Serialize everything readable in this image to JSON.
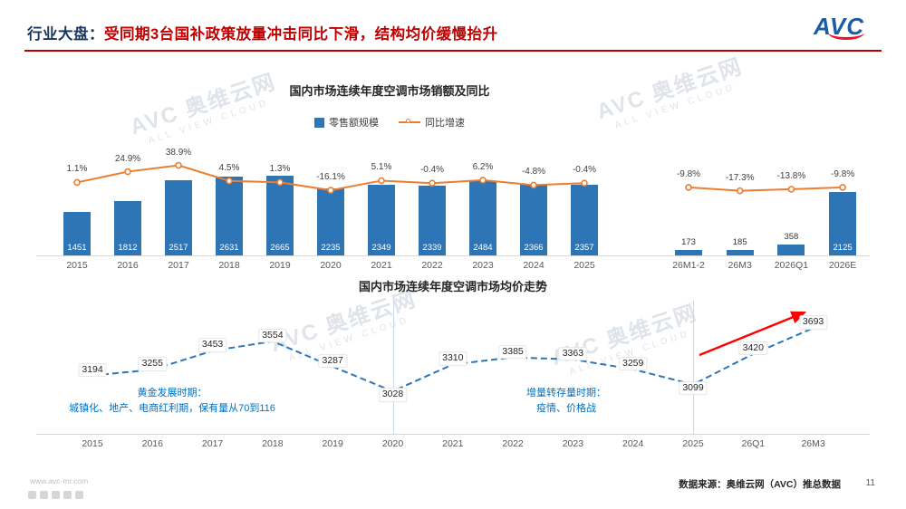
{
  "header": {
    "title_prefix": "行业大盘：",
    "title_main": "受同期3台国补政策放量冲击同比下滑，结构均价缓慢抬升",
    "logo_text": "AVC"
  },
  "watermark": {
    "brand": "AVC 奥维云网",
    "slogan": "ALL VIEW CLOUD"
  },
  "chart_data": [
    {
      "type": "bar",
      "title": "国内市场连续年度空调市场销额及同比",
      "legend": [
        {
          "label": "零售额规模",
          "marker": "bar-swatch",
          "color": "#2E75B6"
        },
        {
          "label": "同比增速",
          "marker": "line-swatch",
          "color": "#ED7D31"
        }
      ],
      "categories": [
        "2015",
        "2016",
        "2017",
        "2018",
        "2019",
        "2020",
        "2021",
        "2022",
        "2023",
        "2024",
        "2025"
      ],
      "series": [
        {
          "name": "零售额规模",
          "type": "bar",
          "color": "#2E75B6",
          "values": [
            1451,
            1812,
            2517,
            2631,
            2665,
            2235,
            2349,
            2339,
            2484,
            2366,
            2357
          ]
        },
        {
          "name": "同比增速",
          "type": "line",
          "color": "#ED7D31",
          "values_pct": [
            1.1,
            24.9,
            38.9,
            4.5,
            1.3,
            -16.1,
            5.1,
            -0.4,
            6.2,
            -4.8,
            -0.4
          ]
        }
      ],
      "forecast": {
        "categories": [
          "26M1-2",
          "26M3",
          "2026Q1",
          "2026E"
        ],
        "bar_values": [
          173,
          185,
          358,
          2125
        ],
        "yoy_pct": [
          -9.8,
          -17.3,
          -13.8,
          -9.8
        ]
      },
      "ylim": [
        0,
        2800
      ],
      "legend_position": "top"
    },
    {
      "type": "line",
      "title": "国内市场连续年度空调市场均价走势",
      "categories": [
        "2015",
        "2016",
        "2017",
        "2018",
        "2019",
        "2020",
        "2021",
        "2022",
        "2023",
        "2024",
        "2025",
        "26Q1",
        "26M3"
      ],
      "values": [
        3194,
        3255,
        3453,
        3554,
        3287,
        3028,
        3310,
        3385,
        3363,
        3259,
        3099,
        3420,
        3693
      ],
      "line_color": "#2E75B6",
      "line_style": "dashed",
      "separators_after": [
        "2020",
        "2025"
      ],
      "trend_arrow_color": "#FF0000",
      "annotations": [
        {
          "title": "黄金发展时期：",
          "body": "城镇化、地产、电商红利期，保有量从70到116"
        },
        {
          "title": "增量转存量时期：",
          "body": "疫情、价格战"
        }
      ]
    }
  ],
  "footer": {
    "website": "www.avc-mr.com",
    "source": "数据来源：奥维云网（AVC）推总数据",
    "page": "11",
    "social_icons": [
      "wechat-icon",
      "weibo-icon",
      "qr-code-icon",
      "video-icon",
      "mail-icon"
    ]
  }
}
